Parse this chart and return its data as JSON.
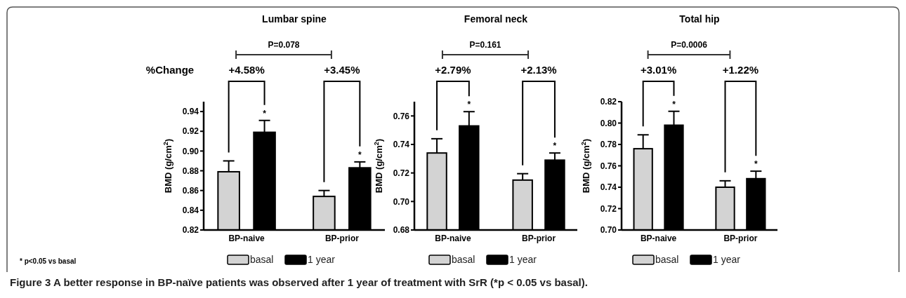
{
  "chart_data": [
    {
      "type": "bar",
      "title": "Lumbar spine",
      "ylabel": "BMD (g/cm$^{2}$)",
      "categories": [
        "BP-naive",
        "BP-prior"
      ],
      "series": [
        {
          "name": "basal",
          "color": "#d3d3d3",
          "values": [
            0.879,
            0.854
          ],
          "errors": [
            0.011,
            0.006
          ]
        },
        {
          "name": "1 year",
          "color": "#000000",
          "values": [
            0.919,
            0.883
          ],
          "errors": [
            0.012,
            0.006
          ],
          "value_labels": [
            "*",
            "*"
          ]
        }
      ],
      "ylim": [
        0.82,
        0.95
      ],
      "yticks": [
        {
          "value": 0.82,
          "label": "0.82"
        },
        {
          "value": 0.84,
          "label": "0.84"
        },
        {
          "value": 0.86,
          "label": "0.86"
        },
        {
          "value": 0.88,
          "label": "0.88"
        },
        {
          "value": 0.9,
          "label": "0.90"
        },
        {
          "value": 0.92,
          "label": "0.92"
        },
        {
          "value": 0.94,
          "label": "0.94"
        }
      ],
      "legend": "bottom",
      "annotations": [
        "P=0.078",
        "+4.58%",
        "+3.45%",
        "%Change",
        "* p<0.05 vs basal",
        "Figure 3 A better response in BP-naïve patients was observed after 1 year of treatment with SrR (*p < 0.05 vs basal)."
      ]
    },
    {
      "type": "bar",
      "title": "Femoral neck",
      "ylabel": "BMD (g/cm$^{2}$)",
      "categories": [
        "BP-naive",
        "BP-prior"
      ],
      "series": [
        {
          "name": "basal",
          "color": "#d3d3d3",
          "values": [
            0.734,
            0.715
          ],
          "errors": [
            0.01,
            0.0045
          ]
        },
        {
          "name": "1 year",
          "color": "#000000",
          "values": [
            0.753,
            0.729
          ],
          "errors": [
            0.01,
            0.005
          ],
          "value_labels": [
            "*",
            "*"
          ]
        }
      ],
      "ylim": [
        0.68,
        0.77
      ],
      "yticks": [
        {
          "value": 0.68,
          "label": "0.68"
        },
        {
          "value": 0.7,
          "label": "0.70"
        },
        {
          "value": 0.72,
          "label": "0.72"
        },
        {
          "value": 0.74,
          "label": "0.74"
        },
        {
          "value": 0.76,
          "label": "0.76"
        }
      ],
      "legend": "bottom",
      "annotations": [
        "P=0.161",
        "+2.79%",
        "+2.13%"
      ]
    },
    {
      "type": "bar",
      "title": "Total hip",
      "ylabel": "BMD (g/cm$^{2}$)",
      "categories": [
        "BP-naive",
        "BP-prior"
      ],
      "series": [
        {
          "name": "basal",
          "color": "#d3d3d3",
          "values": [
            0.776,
            0.74
          ],
          "errors": [
            0.013,
            0.006
          ]
        },
        {
          "name": "1 year",
          "color": "#000000",
          "values": [
            0.798,
            0.748
          ],
          "errors": [
            0.013,
            0.007
          ],
          "value_labels": [
            "*",
            "*"
          ]
        }
      ],
      "ylim": [
        0.7,
        0.82
      ],
      "yticks": [
        {
          "value": 0.7,
          "label": "0.70"
        },
        {
          "value": 0.72,
          "label": "0.72"
        },
        {
          "value": 0.74,
          "label": "0.74"
        },
        {
          "value": 0.76,
          "label": "0.76"
        },
        {
          "value": 0.78,
          "label": "0.78"
        },
        {
          "value": 0.8,
          "label": "0.80"
        },
        {
          "value": 0.82,
          "label": "0.82"
        }
      ],
      "legend": "bottom",
      "annotations": [
        "P=0.0006",
        "+3.01%",
        "+1.22%"
      ]
    }
  ]
}
